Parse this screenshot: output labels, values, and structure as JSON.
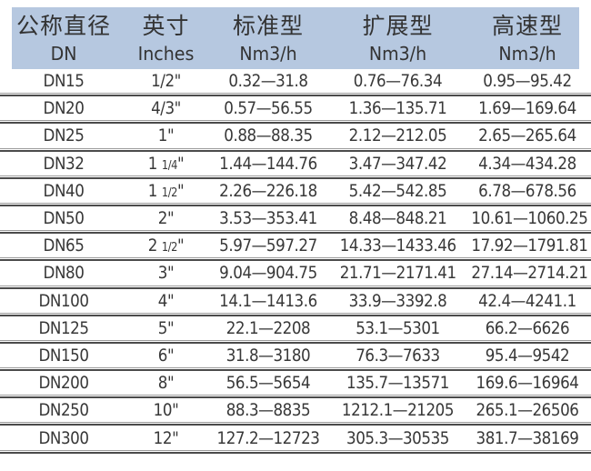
{
  "colors": {
    "header_bg": "#b6c8e0",
    "rule_light": "#9c9c9c",
    "rule_dark": "#4b4b4b",
    "text": "#3a3a3a"
  },
  "table": {
    "headers": [
      {
        "cn": "公称直径",
        "en": "DN"
      },
      {
        "cn": "英寸",
        "en": "Inches"
      },
      {
        "cn": "标准型",
        "en": "Nm3/h"
      },
      {
        "cn": "扩展型",
        "en": "Nm3/h"
      },
      {
        "cn": "高速型",
        "en": "Nm3/h"
      }
    ],
    "rows": [
      {
        "dn": "DN15",
        "inches": "1/2\"",
        "standard": "0.32—31.8",
        "extended": "0.76—76.34",
        "high_speed": "0.95—95.42"
      },
      {
        "dn": "DN20",
        "inches": "4/3\"",
        "standard": "0.57—56.55",
        "extended": "1.36—135.71",
        "high_speed": "1.69—169.64"
      },
      {
        "dn": "DN25",
        "inches": "1\"",
        "standard": "0.88—88.35",
        "extended": "2.12—212.05",
        "high_speed": "2.65—265.64"
      },
      {
        "dn": "DN32",
        "inches": "1 1/4\"",
        "standard": "1.44—144.76",
        "extended": "3.47—347.42",
        "high_speed": "4.34—434.28"
      },
      {
        "dn": "DN40",
        "inches": "1 1/2\"",
        "standard": "2.26—226.18",
        "extended": "5.42—542.85",
        "high_speed": "6.78—678.56"
      },
      {
        "dn": "DN50",
        "inches": "2\"",
        "standard": "3.53—353.41",
        "extended": "8.48—848.21",
        "high_speed": "10.61—1060.25"
      },
      {
        "dn": "DN65",
        "inches": "2 1/2\"",
        "standard": "5.97—597.27",
        "extended": "14.33—1433.46",
        "high_speed": "17.92—1791.81"
      },
      {
        "dn": "DN80",
        "inches": "3\"",
        "standard": "9.04—904.75",
        "extended": "21.71—2171.41",
        "high_speed": "27.14—2714.21"
      },
      {
        "dn": "DN100",
        "inches": "4\"",
        "standard": "14.1—1413.6",
        "extended": "33.9—3392.8",
        "high_speed": "42.4—4241.1"
      },
      {
        "dn": "DN125",
        "inches": "5\"",
        "standard": "22.1—2208",
        "extended": "53.1—5301",
        "high_speed": "66.2—6626"
      },
      {
        "dn": "DN150",
        "inches": "6\"",
        "standard": "31.8—3180",
        "extended": "76.3—7633",
        "high_speed": "95.4—9542"
      },
      {
        "dn": "DN200",
        "inches": "8\"",
        "standard": "56.5—5654",
        "extended": "135.7—13571",
        "high_speed": "169.6—16964"
      },
      {
        "dn": "DN250",
        "inches": "10\"",
        "standard": "88.3—8835",
        "extended": "1212.1—21205",
        "high_speed": "265.1—26506"
      },
      {
        "dn": "DN300",
        "inches": "12\"",
        "standard": "127.2—12723",
        "extended": "305.3—30535",
        "high_speed": "381.7—38169"
      }
    ]
  }
}
